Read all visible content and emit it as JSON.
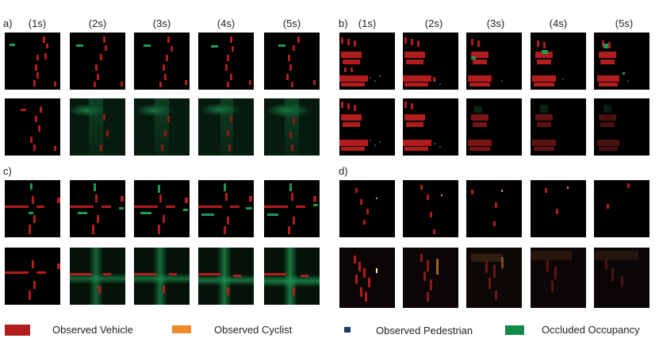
{
  "sections": [
    {
      "letter": "a)",
      "times": [
        "(1s)",
        "(2s)",
        "(3s)",
        "(4s)",
        "(5s)"
      ]
    },
    {
      "letter": "b)",
      "times": [
        "(1s)",
        "(2s)",
        "(3s)",
        "(4s)",
        "(5s)"
      ]
    },
    {
      "letter": "c)"
    },
    {
      "letter": "d)"
    }
  ],
  "legend": [
    {
      "label": "Observed Vehicle",
      "color": "#b11c1c"
    },
    {
      "label": "Observed Cyclist",
      "color": "#ee8a2a"
    },
    {
      "label": "Observed Pedestrian",
      "color": "#1b3f66"
    },
    {
      "label": "Occluded Occupancy",
      "color": "#128a4a"
    }
  ],
  "colors": {
    "vehicle": "#b11c1c",
    "cyclist": "#ee8a2a",
    "pedestrian": "#1b4a70",
    "occluded": "#1f9a55",
    "background": "#000000"
  }
}
